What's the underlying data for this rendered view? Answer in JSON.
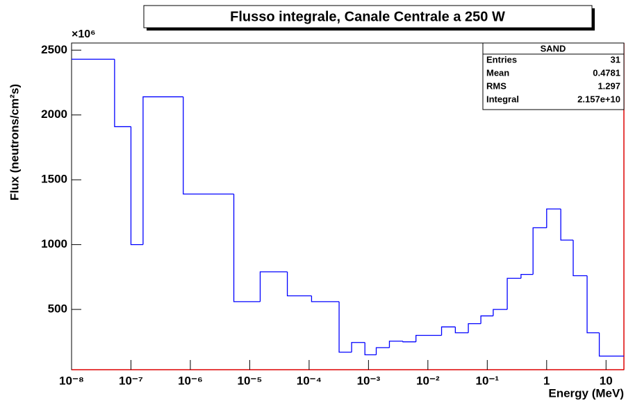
{
  "chart_data": {
    "type": "histogram",
    "title": "Flusso integrale, Canale Centrale a 250 W",
    "x_label": "Energy (MeV)",
    "y_label": "Flux (neutrons/cm²s)",
    "y_multiplier": "×10⁶",
    "xscale": "log",
    "color": "#0000ff",
    "bins": [
      1e-08,
      5.3e-08,
      1e-07,
      1.6e-07,
      7.6e-07,
      5.4e-06,
      1.5e-05,
      4.3e-05,
      0.00011,
      0.00032,
      0.00052,
      0.00087,
      0.00135,
      0.00225,
      0.0038,
      0.0063,
      0.017,
      0.029,
      0.048,
      0.078,
      0.126,
      0.217,
      0.37,
      0.59,
      1,
      1.73,
      2.8,
      4.8,
      7.7,
      20
    ],
    "values": [
      2430,
      1910,
      1000,
      2140,
      1390,
      560,
      790,
      605,
      560,
      170,
      245,
      150,
      205,
      255,
      250,
      300,
      365,
      320,
      390,
      450,
      500,
      740,
      770,
      1130,
      1275,
      1035,
      760,
      320,
      140
    ],
    "xlim": [
      1e-08,
      20
    ],
    "ylim": [
      35,
      2555
    ],
    "xticks": [
      {
        "value": 1e-08,
        "label": "10⁻⁸"
      },
      {
        "value": 1e-07,
        "label": "10⁻⁷"
      },
      {
        "value": 1e-06,
        "label": "10⁻⁶"
      },
      {
        "value": 1e-05,
        "label": "10⁻⁵"
      },
      {
        "value": 0.0001,
        "label": "10⁻⁴"
      },
      {
        "value": 0.001,
        "label": "10⁻³"
      },
      {
        "value": 0.01,
        "label": "10⁻²"
      },
      {
        "value": 0.1,
        "label": "10⁻¹"
      },
      1,
      10
    ],
    "yticks": [
      500,
      1000,
      1500,
      2000,
      2500
    ],
    "stats": {
      "title": "SAND",
      "rows": [
        [
          "Entries",
          "31"
        ],
        [
          "Mean",
          "0.4781"
        ],
        [
          "RMS",
          "1.297"
        ],
        [
          "Integral",
          "2.157e+10"
        ]
      ]
    }
  }
}
